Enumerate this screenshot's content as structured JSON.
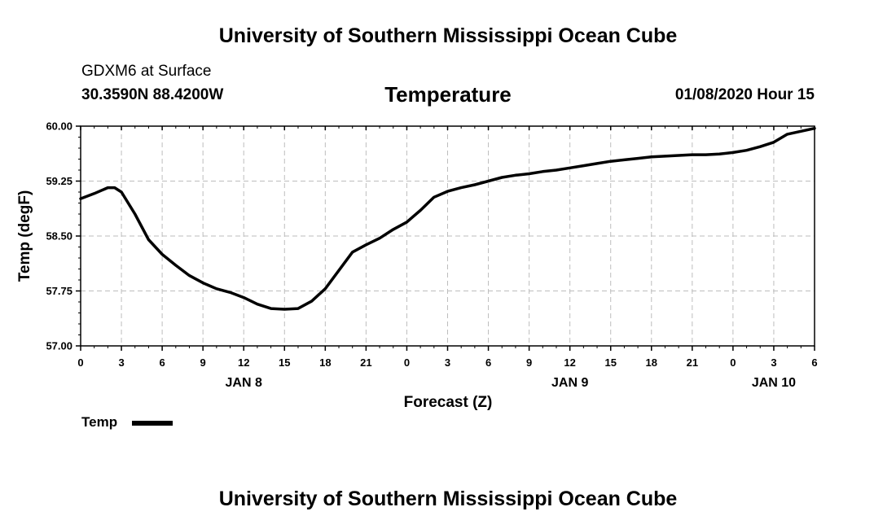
{
  "page": {
    "top_title": "University of Southern Mississippi Ocean Cube",
    "bottom_title": "University of Southern Mississippi Ocean Cube",
    "station": "GDXM6 at Surface",
    "coords": "30.3590N 88.4200W",
    "variable_title": "Temperature",
    "datetime": "01/08/2020 Hour 15"
  },
  "chart_data": {
    "type": "line",
    "title": "Temperature",
    "xlabel": "Forecast (Z)",
    "ylabel": "Temp (degF)",
    "xlim": [
      0,
      54
    ],
    "ylim": [
      57.0,
      60.0
    ],
    "x_ticks": [
      0,
      3,
      6,
      9,
      12,
      15,
      18,
      21,
      24,
      27,
      30,
      33,
      36,
      39,
      42,
      45,
      48,
      51,
      54
    ],
    "x_tick_labels": [
      "0",
      "3",
      "6",
      "9",
      "12",
      "15",
      "18",
      "21",
      "0",
      "3",
      "6",
      "9",
      "12",
      "15",
      "18",
      "21",
      "0",
      "3",
      "6"
    ],
    "y_ticks": [
      57.0,
      57.75,
      58.5,
      59.25,
      60.0
    ],
    "y_tick_labels": [
      "57.00",
      "57.75",
      "58.50",
      "59.25",
      "60.00"
    ],
    "day_labels": [
      {
        "x": 12,
        "label": "JAN 8"
      },
      {
        "x": 36,
        "label": "JAN 9"
      },
      {
        "x": 51,
        "label": "JAN 10"
      }
    ],
    "grid": true,
    "legend": {
      "placement": "bottom-left",
      "entries": [
        "Temp"
      ]
    },
    "series": [
      {
        "name": "Temp",
        "color": "#000000",
        "x": [
          0,
          1,
          2,
          2.5,
          3,
          4,
          5,
          6,
          7,
          8,
          9,
          10,
          11,
          12,
          13,
          14,
          15,
          16,
          17,
          18,
          19,
          20,
          21,
          22,
          23,
          24,
          25,
          26,
          27,
          28,
          29,
          30,
          31,
          32,
          33,
          34,
          35,
          36,
          37,
          38,
          39,
          40,
          41,
          42,
          43,
          44,
          45,
          46,
          47,
          48,
          49,
          50,
          51,
          52,
          53,
          54
        ],
        "y": [
          59.01,
          59.08,
          59.16,
          59.16,
          59.1,
          58.8,
          58.45,
          58.25,
          58.1,
          57.96,
          57.86,
          57.78,
          57.73,
          57.66,
          57.57,
          57.51,
          57.5,
          57.51,
          57.61,
          57.78,
          58.03,
          58.28,
          58.38,
          58.47,
          58.59,
          58.69,
          58.85,
          59.03,
          59.11,
          59.16,
          59.2,
          59.25,
          59.3,
          59.33,
          59.35,
          59.38,
          59.4,
          59.43,
          59.46,
          59.49,
          59.52,
          59.54,
          59.56,
          59.58,
          59.59,
          59.6,
          59.61,
          59.61,
          59.62,
          59.64,
          59.67,
          59.72,
          59.78,
          59.89,
          59.93,
          59.97
        ]
      }
    ]
  }
}
